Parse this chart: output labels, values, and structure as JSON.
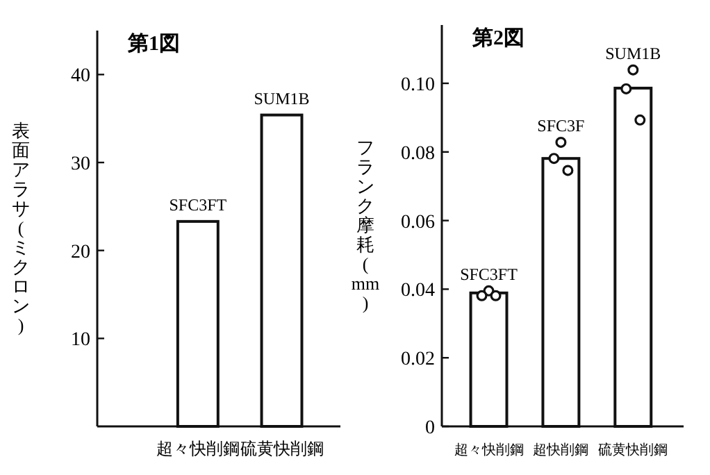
{
  "chart_data": [
    {
      "type": "bar",
      "title": "第1図",
      "ylabel": "表面アラサ(ミクロン)",
      "categories": [
        "超々快削鋼",
        "硫黄快削鋼"
      ],
      "series": [
        {
          "color": "#ffffff",
          "values": [
            23.3,
            35.4
          ]
        }
      ],
      "ylim": [
        0,
        45
      ],
      "yticks": [
        10,
        20,
        30,
        40
      ],
      "grid": false,
      "annotations": [
        {
          "text": "SFC3FT",
          "x": "超々快削鋼",
          "y": 23.3
        },
        {
          "text": "SUM1B",
          "x": "硫黄快削鋼",
          "y": 35.4
        }
      ]
    },
    {
      "type": "bar",
      "title": "第2図",
      "ylabel": "フランク摩耗(mm)",
      "categories": [
        "超々快削鋼",
        "超快削鋼",
        "硫黄快削鋼"
      ],
      "series": [
        {
          "color": "#ffffff",
          "values": [
            0.0389,
            0.0781,
            0.0986
          ]
        },
        {
          "type": "scatter",
          "color": "#ffffff",
          "marker": "circle",
          "x": [
            "超々快削鋼",
            "超々快削鋼",
            "超々快削鋼",
            "超快削鋼",
            "超快削鋼",
            "超快削鋼",
            "硫黄快削鋼",
            "硫黄快削鋼",
            "硫黄快削鋼"
          ],
          "values": [
            0.0395,
            0.0381,
            0.0381,
            0.0828,
            0.0781,
            0.0746,
            0.1039,
            0.0984,
            0.0893
          ]
        }
      ],
      "ylim": [
        0,
        0.117
      ],
      "yticks": [
        0,
        0.02,
        0.04,
        0.06,
        0.08,
        {
          "value": 0.1,
          "label": "0.10"
        }
      ],
      "grid": false,
      "annotations": [
        {
          "text": "SFC3FT",
          "x": "超々快削鋼",
          "y": 0.0395
        },
        {
          "text": "SFC3F",
          "x": "超快削鋼",
          "y": 0.0828
        },
        {
          "text": "SUM1B",
          "x": "硫黄快削鋼",
          "y": 0.1039
        }
      ]
    }
  ]
}
